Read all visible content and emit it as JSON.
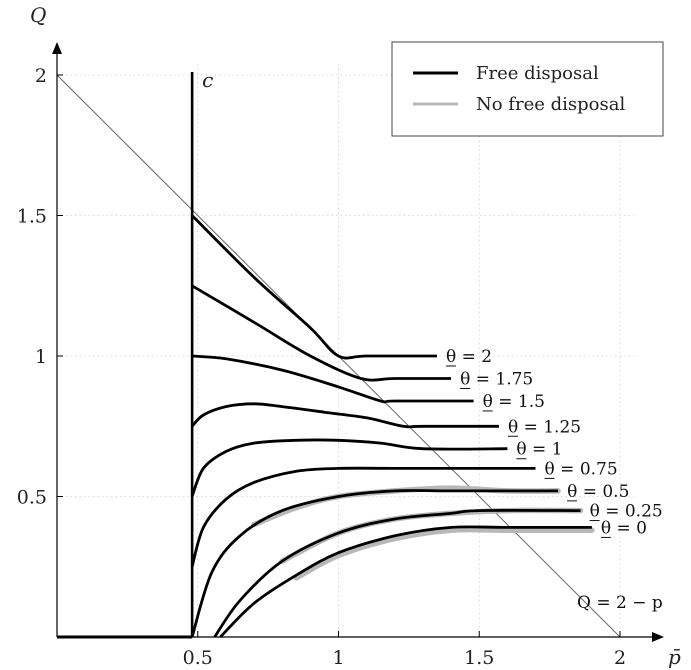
{
  "chart_data": {
    "type": "line",
    "xlabel": "p̄",
    "ylabel": "Q",
    "xlim": [
      0,
      2.1
    ],
    "ylim": [
      0,
      2.1
    ],
    "x_ticks": [
      0.5,
      1,
      1.5,
      2
    ],
    "x_tick_labels": [
      "0.5",
      "1",
      "1.5",
      "2"
    ],
    "y_ticks": [
      0.5,
      1,
      1.5,
      2
    ],
    "y_tick_labels": [
      "0.5",
      "1",
      "1.5",
      "2"
    ],
    "grid": true,
    "legend_position": "top-right",
    "legend": [
      {
        "label": "Free disposal",
        "color": "#000000"
      },
      {
        "label": "No free disposal",
        "color": "#b8b8b8"
      }
    ],
    "vertical_line": {
      "x": 0.48,
      "label": "c"
    },
    "reference_line": {
      "label": "Q = 2 − p",
      "x": [
        0,
        2
      ],
      "y": [
        2,
        0
      ]
    },
    "free_disposal_series": [
      {
        "label": "θ = 2",
        "x": [
          0.48,
          0.7,
          0.9,
          1.0,
          1.1,
          1.35
        ],
        "y": [
          1.5,
          1.28,
          1.1,
          1.0,
          1.0,
          1.0
        ]
      },
      {
        "label": "θ = 1.75",
        "x": [
          0.48,
          0.7,
          0.9,
          1.08,
          1.2,
          1.4
        ],
        "y": [
          1.25,
          1.12,
          1.0,
          0.92,
          0.92,
          0.92
        ]
      },
      {
        "label": "θ = 1.5",
        "x": [
          0.48,
          0.6,
          0.8,
          1.0,
          1.15,
          1.2,
          1.48
        ],
        "y": [
          1.0,
          0.99,
          0.95,
          0.89,
          0.84,
          0.84,
          0.84
        ]
      },
      {
        "label": "θ = 1.25",
        "x": [
          0.48,
          0.52,
          0.6,
          0.7,
          0.8,
          0.95,
          1.1,
          1.23,
          1.3,
          1.57
        ],
        "y": [
          0.75,
          0.79,
          0.82,
          0.83,
          0.82,
          0.8,
          0.78,
          0.75,
          0.75,
          0.75
        ]
      },
      {
        "label": "θ = 1",
        "x": [
          0.48,
          0.52,
          0.6,
          0.7,
          0.85,
          1.0,
          1.15,
          1.3,
          1.6
        ],
        "y": [
          0.5,
          0.6,
          0.66,
          0.69,
          0.7,
          0.7,
          0.69,
          0.67,
          0.67
        ]
      },
      {
        "label": "θ = 0.75",
        "x": [
          0.48,
          0.52,
          0.6,
          0.7,
          0.85,
          1.0,
          1.2,
          1.38,
          1.7
        ],
        "y": [
          0.25,
          0.39,
          0.49,
          0.55,
          0.59,
          0.6,
          0.6,
          0.6,
          0.6
        ]
      },
      {
        "label": "θ = 0.5",
        "x": [
          0.48,
          0.55,
          0.65,
          0.8,
          1.0,
          1.2,
          1.4,
          1.78
        ],
        "y": [
          0.0,
          0.23,
          0.36,
          0.45,
          0.5,
          0.52,
          0.52,
          0.52
        ]
      },
      {
        "label": "θ = 0.25",
        "x": [
          0.56,
          0.65,
          0.8,
          1.0,
          1.2,
          1.4,
          1.5,
          1.86
        ],
        "y": [
          0.0,
          0.13,
          0.27,
          0.37,
          0.42,
          0.44,
          0.45,
          0.45
        ]
      },
      {
        "label": "θ = 0",
        "x": [
          0.58,
          0.7,
          0.85,
          1.0,
          1.2,
          1.4,
          1.6,
          1.9
        ],
        "y": [
          0.0,
          0.12,
          0.22,
          0.3,
          0.36,
          0.39,
          0.39,
          0.39
        ]
      }
    ],
    "no_free_disposal_series": [
      {
        "x": [
          0.7,
          0.85,
          1.0,
          1.2,
          1.4,
          1.6,
          1.78
        ],
        "y": [
          0.4,
          0.46,
          0.5,
          0.52,
          0.53,
          0.52,
          0.52
        ]
      },
      {
        "x": [
          0.8,
          1.0,
          1.2,
          1.4,
          1.6,
          1.86
        ],
        "y": [
          0.27,
          0.37,
          0.42,
          0.44,
          0.45,
          0.45
        ]
      },
      {
        "x": [
          0.85,
          1.0,
          1.2,
          1.4,
          1.6,
          1.9
        ],
        "y": [
          0.21,
          0.29,
          0.35,
          0.38,
          0.38,
          0.38
        ]
      }
    ],
    "baseline": {
      "x": [
        0,
        0.48
      ],
      "y": [
        0,
        0
      ]
    }
  }
}
